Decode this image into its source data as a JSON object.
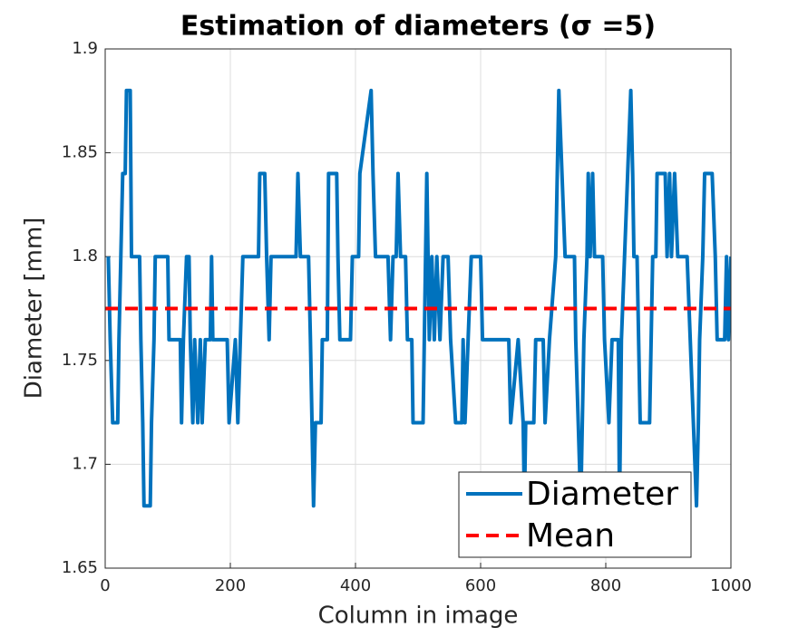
{
  "chart_data": {
    "type": "line",
    "title": "Estimation of diameters (σ =5)",
    "xlabel": "Column in image",
    "ylabel": "Diameter [mm]",
    "xlim": [
      0,
      1000
    ],
    "xticks": [
      0,
      200,
      400,
      600,
      800,
      1000
    ],
    "ylim": [
      1.65,
      1.9
    ],
    "yticks": [
      1.65,
      1.7,
      1.75,
      1.8,
      1.85,
      1.9
    ],
    "grid": true,
    "legend": "lower right",
    "series": [
      {
        "name": "Diameter",
        "color": "#0072bd",
        "style": "solid",
        "x": [
          5,
          8,
          12,
          20,
          22,
          25,
          28,
          32,
          34,
          40,
          42,
          55,
          57,
          60,
          62,
          72,
          74,
          78,
          80,
          100,
          102,
          120,
          122,
          125,
          130,
          134,
          136,
          140,
          143,
          148,
          152,
          155,
          160,
          168,
          170,
          172,
          195,
          198,
          208,
          212,
          220,
          245,
          247,
          255,
          258,
          262,
          265,
          305,
          308,
          312,
          325,
          328,
          333,
          336,
          345,
          347,
          355,
          357,
          370,
          372,
          375,
          392,
          395,
          405,
          407,
          425,
          428,
          432,
          452,
          456,
          460,
          465,
          468,
          472,
          480,
          483,
          490,
          492,
          508,
          510,
          514,
          518,
          522,
          526,
          530,
          535,
          540,
          548,
          552,
          560,
          570,
          572,
          575,
          580,
          585,
          600,
          603,
          645,
          648,
          660,
          668,
          670,
          672,
          685,
          688,
          700,
          703,
          710,
          720,
          725,
          730,
          735,
          750,
          752,
          760,
          765,
          770,
          772,
          775,
          779,
          782,
          795,
          798,
          805,
          810,
          820,
          822,
          825,
          830,
          835,
          840,
          843,
          845,
          850,
          855,
          870,
          875,
          880,
          882,
          895,
          898,
          902,
          905,
          910,
          915,
          930,
          935,
          940,
          945,
          948,
          950,
          955,
          958,
          970,
          975,
          978,
          990,
          993,
          996,
          1000
        ],
        "values": [
          1.8,
          1.76,
          1.72,
          1.72,
          1.76,
          1.8,
          1.84,
          1.84,
          1.88,
          1.88,
          1.8,
          1.8,
          1.76,
          1.72,
          1.68,
          1.68,
          1.72,
          1.76,
          1.8,
          1.8,
          1.76,
          1.76,
          1.72,
          1.76,
          1.8,
          1.8,
          1.76,
          1.72,
          1.76,
          1.72,
          1.76,
          1.72,
          1.76,
          1.76,
          1.8,
          1.76,
          1.76,
          1.72,
          1.76,
          1.72,
          1.8,
          1.8,
          1.84,
          1.84,
          1.8,
          1.76,
          1.8,
          1.8,
          1.84,
          1.8,
          1.8,
          1.76,
          1.68,
          1.72,
          1.72,
          1.76,
          1.76,
          1.84,
          1.84,
          1.8,
          1.76,
          1.76,
          1.8,
          1.8,
          1.84,
          1.88,
          1.84,
          1.8,
          1.8,
          1.76,
          1.8,
          1.8,
          1.84,
          1.8,
          1.8,
          1.76,
          1.76,
          1.72,
          1.72,
          1.76,
          1.84,
          1.76,
          1.8,
          1.76,
          1.8,
          1.76,
          1.8,
          1.8,
          1.76,
          1.72,
          1.72,
          1.76,
          1.72,
          1.76,
          1.8,
          1.8,
          1.76,
          1.76,
          1.72,
          1.76,
          1.72,
          1.68,
          1.72,
          1.72,
          1.76,
          1.76,
          1.72,
          1.76,
          1.8,
          1.88,
          1.84,
          1.8,
          1.8,
          1.76,
          1.68,
          1.76,
          1.8,
          1.84,
          1.8,
          1.84,
          1.8,
          1.8,
          1.76,
          1.72,
          1.76,
          1.76,
          1.68,
          1.76,
          1.8,
          1.84,
          1.88,
          1.84,
          1.8,
          1.8,
          1.72,
          1.72,
          1.8,
          1.8,
          1.84,
          1.84,
          1.8,
          1.84,
          1.8,
          1.84,
          1.8,
          1.8,
          1.76,
          1.72,
          1.68,
          1.72,
          1.76,
          1.8,
          1.84,
          1.84,
          1.8,
          1.76,
          1.76,
          1.8,
          1.76,
          1.8
        ]
      },
      {
        "name": "Mean",
        "color": "#ff0000",
        "style": "dashed",
        "x": [
          0,
          1000
        ],
        "values": [
          1.775,
          1.775
        ]
      }
    ]
  }
}
